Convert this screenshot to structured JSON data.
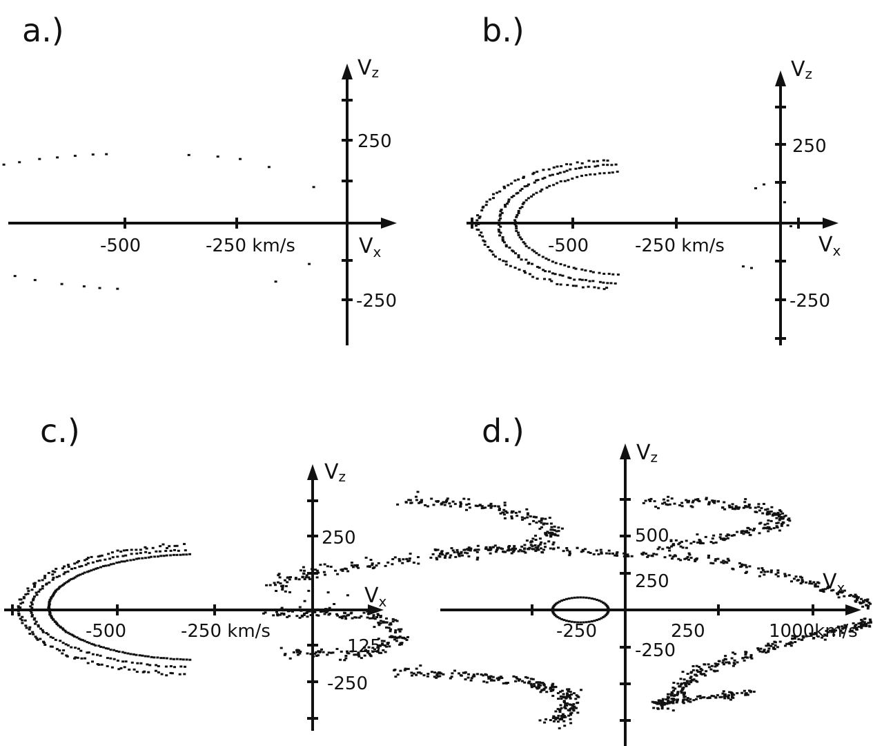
{
  "chart_data": [
    {
      "type": "scatter",
      "panel": "a.)",
      "xlabel": "V",
      "xlabel_sub": "x",
      "ylabel": "V",
      "ylabel_sub": "z",
      "xunit": "km/s",
      "xticks": [
        -500,
        -250
      ],
      "xtick_labels": [
        "-500",
        "-250 km/s"
      ],
      "yticks": [
        250,
        -250
      ],
      "ytick_labels": [
        "250",
        "-250"
      ],
      "xlim": [
        -1010,
        210
      ],
      "ylim": [
        -420,
        430
      ],
      "points": [
        [
          -985,
          20
        ],
        [
          -983,
          80
        ],
        [
          -975,
          120
        ],
        [
          -965,
          150
        ],
        [
          -955,
          175
        ],
        [
          -945,
          200
        ],
        [
          -930,
          235
        ],
        [
          -910,
          265
        ],
        [
          -885,
          290
        ],
        [
          -860,
          315
        ],
        [
          -830,
          340
        ],
        [
          -800,
          355
        ],
        [
          -770,
          365
        ],
        [
          -735,
          380
        ],
        [
          -690,
          400
        ],
        [
          -650,
          410
        ],
        [
          -610,
          420
        ],
        [
          -570,
          428
        ],
        [
          -540,
          430
        ],
        [
          -355,
          425
        ],
        [
          -290,
          415
        ],
        [
          -240,
          400
        ],
        [
          -175,
          350
        ],
        [
          -75,
          225
        ],
        [
          -980,
          -30
        ],
        [
          -970,
          -70
        ],
        [
          -955,
          -110
        ],
        [
          -935,
          -150
        ],
        [
          -910,
          -190
        ],
        [
          -880,
          -225
        ],
        [
          -850,
          -255
        ],
        [
          -820,
          -275
        ],
        [
          -785,
          -300
        ],
        [
          -745,
          -330
        ],
        [
          -700,
          -355
        ],
        [
          -640,
          -380
        ],
        [
          -590,
          -395
        ],
        [
          -555,
          -405
        ],
        [
          -515,
          -410
        ],
        [
          -160,
          -365
        ],
        [
          -85,
          -255
        ]
      ]
    },
    {
      "type": "scatter",
      "panel": "b.)",
      "xlabel": "V",
      "xlabel_sub": "x",
      "ylabel": "V",
      "ylabel_sub": "z",
      "xunit": "km/s",
      "xticks": [
        -500,
        -250
      ],
      "xtick_labels": [
        "-500",
        "-250 km/s"
      ],
      "yticks": [
        250,
        -250
      ],
      "ytick_labels": [
        "250",
        "-250"
      ],
      "xlim": [
        -760,
        140
      ],
      "ylim": [
        -420,
        440
      ],
      "ellipses": [
        {
          "cx": -395,
          "cz": -10,
          "rx": 335,
          "rz": 415,
          "n": 80,
          "jitter": 8
        },
        {
          "cx": -380,
          "cz": -5,
          "rx": 300,
          "rz": 385,
          "n": 90,
          "jitter": 6
        },
        {
          "cx": -375,
          "cz": 0,
          "rx": 265,
          "rz": 330,
          "n": 70,
          "jitter": 4
        }
      ],
      "extra_points": [
        [
          -40,
          250
        ],
        [
          -60,
          225
        ],
        [
          10,
          135
        ],
        [
          25,
          -20
        ],
        [
          -90,
          -280
        ],
        [
          -70,
          -290
        ]
      ]
    },
    {
      "type": "scatter",
      "panel": "c.)",
      "xlabel": "V",
      "xlabel_sub": "x",
      "ylabel": "V",
      "ylabel_sub": "z",
      "xunit": "km/s",
      "xticks": [
        -500,
        -250,
        125
      ],
      "xtick_labels": [
        "-500",
        "-250 km/s"
      ],
      "yticks": [
        250,
        -250,
        -125
      ],
      "ytick_labels": [
        "250",
        "-250",
        "125"
      ],
      "xlim": [
        -780,
        190
      ],
      "ylim": [
        -430,
        470
      ],
      "ellipses": [
        {
          "cx": -300,
          "cz": 0,
          "rx": 450,
          "rz": 440,
          "n": 120,
          "jitter": 12
        },
        {
          "cx": -300,
          "cz": 10,
          "rx": 420,
          "rz": 400,
          "n": 100,
          "jitter": 6
        },
        {
          "cx": -290,
          "cz": 20,
          "rx": 385,
          "rz": 360,
          "n": 140,
          "jitter": 2
        }
      ],
      "extra_points": [
        [
          -30,
          270
        ],
        [
          -20,
          210
        ],
        [
          -10,
          130
        ],
        [
          40,
          120
        ],
        [
          55,
          40
        ],
        [
          90,
          100
        ],
        [
          85,
          -60
        ],
        [
          70,
          -50
        ],
        [
          -80,
          -260
        ],
        [
          -70,
          -300
        ]
      ]
    },
    {
      "type": "scatter",
      "panel": "d.)",
      "xlabel": "V",
      "xlabel_sub": "x",
      "ylabel": "V",
      "ylabel_sub": "z",
      "xunit": "km/s",
      "xticks": [
        -500,
        -250,
        250,
        500,
        1000
      ],
      "xtick_labels": [
        "-250",
        "250",
        "1000km/s"
      ],
      "yticks": [
        500,
        250,
        -250,
        -500
      ],
      "ytick_labels": [
        "500",
        "250",
        "-250"
      ],
      "xlim": [
        -1010,
        1380
      ],
      "ylim": [
        -820,
        1120
      ],
      "arms": [
        {
          "path": [
            [
              -600,
              750
            ],
            [
              -420,
              720
            ],
            [
              -280,
              660
            ],
            [
              -190,
              540
            ],
            [
              -250,
              420
            ],
            [
              -420,
              400
            ],
            [
              -620,
              330
            ],
            [
              -850,
              250
            ],
            [
              -950,
              150
            ]
          ],
          "n": 160,
          "jitter": 38
        },
        {
          "path": [
            [
              60,
              740
            ],
            [
              230,
              720
            ],
            [
              360,
              690
            ],
            [
              440,
              620
            ],
            [
              370,
              550
            ],
            [
              240,
              490
            ],
            [
              90,
              420
            ]
          ],
          "n": 110,
          "jitter": 34
        },
        {
          "path": [
            [
              -500,
              400
            ],
            [
              -250,
              420
            ],
            [
              0,
              380
            ],
            [
              250,
              330
            ],
            [
              470,
              210
            ],
            [
              620,
              80
            ],
            [
              700,
              0
            ]
          ],
          "n": 130,
          "jitter": 28
        },
        {
          "path": [
            [
              -950,
              -20
            ],
            [
              -800,
              -20
            ],
            [
              -650,
              -60
            ],
            [
              -610,
              -200
            ],
            [
              -700,
              -300
            ],
            [
              -900,
              -300
            ]
          ],
          "n": 110,
          "jitter": 32
        },
        {
          "path": [
            [
              -620,
              -420
            ],
            [
              -400,
              -450
            ],
            [
              -250,
              -500
            ],
            [
              -160,
              -560
            ],
            [
              -140,
              -680
            ],
            [
              -200,
              -760
            ]
          ],
          "n": 120,
          "jitter": 34
        },
        {
          "path": [
            [
              700,
              -10
            ],
            [
              620,
              -110
            ],
            [
              470,
              -200
            ],
            [
              320,
              -310
            ],
            [
              200,
              -420
            ],
            [
              140,
              -560
            ],
            [
              80,
              -660
            ]
          ],
          "n": 150,
          "jitter": 30
        },
        {
          "path": [
            [
              70,
              -630
            ],
            [
              230,
              -600
            ],
            [
              340,
              -550
            ]
          ],
          "n": 40,
          "jitter": 22
        }
      ],
      "ring": {
        "cx": -120,
        "cz": 0,
        "rx": 75,
        "rz": 85,
        "n": 60
      },
      "extra_points": [
        [
          -860,
          60
        ],
        [
          -900,
          120
        ],
        [
          820,
          40
        ],
        [
          850,
          -20
        ],
        [
          790,
          10
        ]
      ]
    }
  ]
}
